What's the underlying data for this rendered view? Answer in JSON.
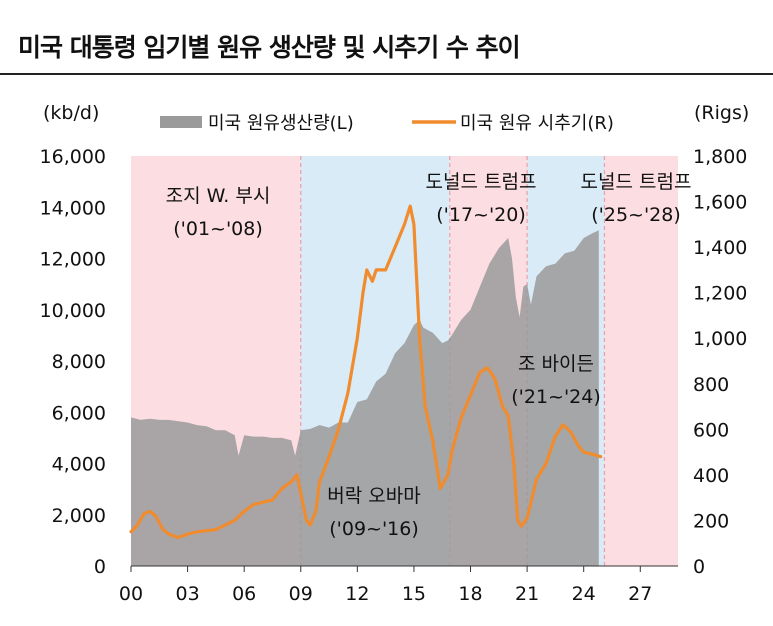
{
  "title": "미국 대통령 임기별 원유 생산량 및 시추기 수 추이",
  "chart_data": {
    "type": "area+line",
    "left_unit": "(kb/d)",
    "right_unit": "(Rigs)",
    "ylim_left": [
      0,
      16000
    ],
    "ylim_right": [
      0,
      1800
    ],
    "xlim": [
      2000,
      2029
    ],
    "left_ticks": [
      "0",
      "2,000",
      "4,000",
      "6,000",
      "8,000",
      "10,000",
      "12,000",
      "14,000",
      "16,000"
    ],
    "right_ticks": [
      "0",
      "200",
      "400",
      "600",
      "800",
      "1,000",
      "1,200",
      "1,400",
      "1,600",
      "1,800"
    ],
    "x_ticks": [
      {
        "value": 2000,
        "label": "00"
      },
      {
        "value": 2003,
        "label": "03"
      },
      {
        "value": 2006,
        "label": "06"
      },
      {
        "value": 2009,
        "label": "09"
      },
      {
        "value": 2012,
        "label": "12"
      },
      {
        "value": 2015,
        "label": "15"
      },
      {
        "value": 2018,
        "label": "18"
      },
      {
        "value": 2021,
        "label": "21"
      },
      {
        "value": 2024,
        "label": "24"
      },
      {
        "value": 2027,
        "label": "27"
      }
    ],
    "eras": [
      {
        "from": 2000.0,
        "to": 2009.0,
        "party": "R",
        "name": "조지 W. 부시",
        "term": "('01~'08)"
      },
      {
        "from": 2009.0,
        "to": 2016.9,
        "party": "D",
        "name": "버락 오바마",
        "term": "('09~'16)"
      },
      {
        "from": 2016.9,
        "to": 2021.0,
        "party": "R",
        "name": "도널드 트럼프",
        "term": "('17~'20)"
      },
      {
        "from": 2021.0,
        "to": 2025.1,
        "party": "D",
        "name": "조 바이든",
        "term": "('21~'24)"
      },
      {
        "from": 2025.1,
        "to": 2029.0,
        "party": "R",
        "name": "도널드 트럼프",
        "term": "('25~'28)"
      }
    ],
    "colors": {
      "republican": "#fbdde2",
      "democrat": "#d9ebf7",
      "production": "#9a9a9a",
      "rigs": "#f08c2e"
    },
    "series": [
      {
        "name": "미국 원유생산량(L)",
        "axis": "left",
        "style": "area",
        "x": [
          2000.0,
          2000.5,
          2001.0,
          2001.5,
          2002.0,
          2002.5,
          2003.0,
          2003.5,
          2004.0,
          2004.5,
          2005.0,
          2005.5,
          2005.7,
          2006.0,
          2006.5,
          2007.0,
          2007.5,
          2008.0,
          2008.5,
          2008.7,
          2009.0,
          2009.5,
          2010.0,
          2010.5,
          2011.0,
          2011.5,
          2012.0,
          2012.5,
          2013.0,
          2013.5,
          2014.0,
          2014.5,
          2015.0,
          2015.3,
          2015.5,
          2016.0,
          2016.5,
          2016.8,
          2017.0,
          2017.5,
          2018.0,
          2018.5,
          2019.0,
          2019.5,
          2020.0,
          2020.2,
          2020.4,
          2020.6,
          2020.8,
          2021.0,
          2021.2,
          2021.5,
          2022.0,
          2022.5,
          2023.0,
          2023.5,
          2024.0,
          2024.5,
          2024.8
        ],
        "values": [
          5800,
          5700,
          5750,
          5700,
          5700,
          5650,
          5600,
          5500,
          5450,
          5300,
          5300,
          5100,
          4300,
          5100,
          5050,
          5050,
          5000,
          5000,
          4900,
          4300,
          5300,
          5350,
          5500,
          5400,
          5600,
          5600,
          6400,
          6500,
          7200,
          7500,
          8300,
          8700,
          9400,
          9600,
          9300,
          9100,
          8700,
          8800,
          9000,
          9600,
          10000,
          10900,
          11800,
          12400,
          12800,
          12000,
          10500,
          9700,
          10900,
          11000,
          10200,
          11300,
          11700,
          11800,
          12200,
          12300,
          12800,
          13000,
          13100
        ]
      },
      {
        "name": "미국 원유 시추기(R)",
        "axis": "right",
        "style": "line",
        "x": [
          2000.0,
          2000.3,
          2000.7,
          2001.0,
          2001.3,
          2001.7,
          2002.0,
          2002.5,
          2003.0,
          2003.5,
          2004.0,
          2004.5,
          2005.0,
          2005.5,
          2006.0,
          2006.5,
          2007.0,
          2007.5,
          2008.0,
          2008.5,
          2008.8,
          2009.0,
          2009.3,
          2009.5,
          2009.8,
          2010.0,
          2010.5,
          2011.0,
          2011.5,
          2012.0,
          2012.3,
          2012.5,
          2012.8,
          2013.0,
          2013.5,
          2014.0,
          2014.5,
          2014.8,
          2015.0,
          2015.3,
          2015.6,
          2016.0,
          2016.4,
          2016.8,
          2017.0,
          2017.5,
          2018.0,
          2018.5,
          2018.9,
          2019.3,
          2019.7,
          2020.0,
          2020.3,
          2020.5,
          2020.7,
          2021.0,
          2021.5,
          2022.0,
          2022.5,
          2022.9,
          2023.3,
          2023.7,
          2024.0,
          2024.5,
          2024.9
        ],
        "values": [
          150,
          175,
          230,
          240,
          220,
          160,
          140,
          125,
          140,
          150,
          155,
          160,
          180,
          200,
          240,
          270,
          280,
          290,
          340,
          370,
          400,
          320,
          200,
          180,
          240,
          370,
          480,
          600,
          760,
          1000,
          1200,
          1300,
          1250,
          1300,
          1300,
          1400,
          1500,
          1580,
          1500,
          1000,
          700,
          550,
          340,
          400,
          500,
          650,
          750,
          850,
          870,
          820,
          700,
          660,
          450,
          200,
          175,
          210,
          380,
          450,
          570,
          620,
          590,
          530,
          500,
          490,
          480
        ]
      }
    ]
  }
}
